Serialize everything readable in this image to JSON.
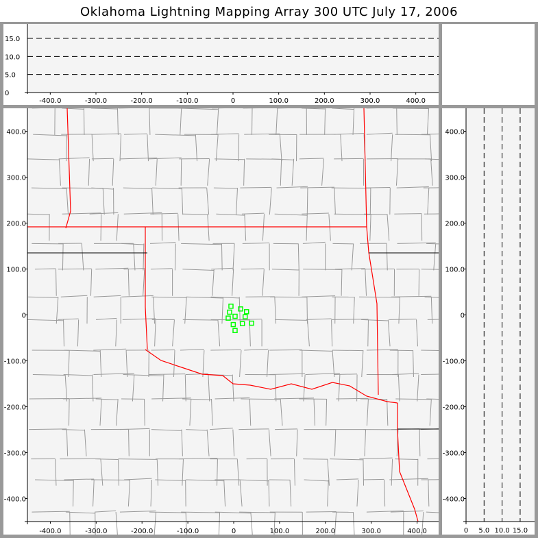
{
  "title": "Oklahoma Lightning Mapping Array   300 UTC  July 17, 2006",
  "colors": {
    "state_border": "#ff0000",
    "county_border": "#999999",
    "source_marker": "#00ff00",
    "plot_bg": "#f4f4f4",
    "frame": "#999999"
  },
  "chart_data": [
    {
      "panel": "top",
      "type": "scatter",
      "xlim": [
        -450,
        450
      ],
      "ylim": [
        0,
        19
      ],
      "x_ticks": [
        -400,
        -300,
        -200,
        -100,
        0,
        100,
        200,
        300,
        400
      ],
      "x_tick_labels": [
        "-400.0",
        "-300.0",
        "-200.0",
        "-100.0",
        "0",
        "100.0",
        "200.0",
        "300.0",
        "400.0"
      ],
      "y_ticks": [
        0,
        5,
        10,
        15
      ],
      "y_tick_labels": [
        "0",
        "5.0",
        "10.0",
        "15.0"
      ],
      "gridlines": [
        5,
        10,
        15
      ],
      "grid": "dashed",
      "points": []
    },
    {
      "panel": "main",
      "type": "scatter",
      "xlim": [
        -450,
        450
      ],
      "ylim": [
        -450,
        450
      ],
      "x_ticks": [
        -400,
        -300,
        -200,
        -100,
        0,
        100,
        200,
        300,
        400
      ],
      "x_tick_labels": [
        "-400.0",
        "-300.0",
        "-200.0",
        "-100.0",
        "0",
        "100.0",
        "200.0",
        "300.0",
        "400.0"
      ],
      "y_ticks": [
        -400,
        -300,
        -200,
        -100,
        0,
        100,
        200,
        300,
        400
      ],
      "y_tick_labels": [
        "-400.0",
        "-300.0",
        "-200.0",
        "-100.0",
        "0",
        "100.0",
        "200.0",
        "300.0",
        "400.0"
      ],
      "marker": "square",
      "background_map": "state and county borders",
      "points": [
        [
          -6,
          19
        ],
        [
          15,
          13
        ],
        [
          28,
          7
        ],
        [
          -9,
          6
        ],
        [
          3,
          -3
        ],
        [
          -12,
          -7
        ],
        [
          25,
          -4
        ],
        [
          39,
          -18
        ],
        [
          19,
          -19
        ],
        [
          -1,
          -21
        ],
        [
          3,
          -34
        ]
      ]
    },
    {
      "panel": "right",
      "type": "scatter",
      "xlim": [
        0,
        19
      ],
      "ylim": [
        -450,
        450
      ],
      "x_ticks": [
        0,
        5,
        10,
        15
      ],
      "x_tick_labels": [
        "0",
        "5.0",
        "10.0",
        "15.0"
      ],
      "y_ticks": [
        -400,
        -300,
        -200,
        -100,
        0,
        100,
        200,
        300,
        400
      ],
      "y_tick_labels": [
        "-400.0",
        "-300.0",
        "-200.0",
        "-100.0",
        "0",
        "100.0",
        "200.0",
        "300.0",
        "400.0"
      ],
      "gridlines": [
        5,
        10,
        15
      ],
      "grid": "dashed",
      "points": []
    }
  ]
}
